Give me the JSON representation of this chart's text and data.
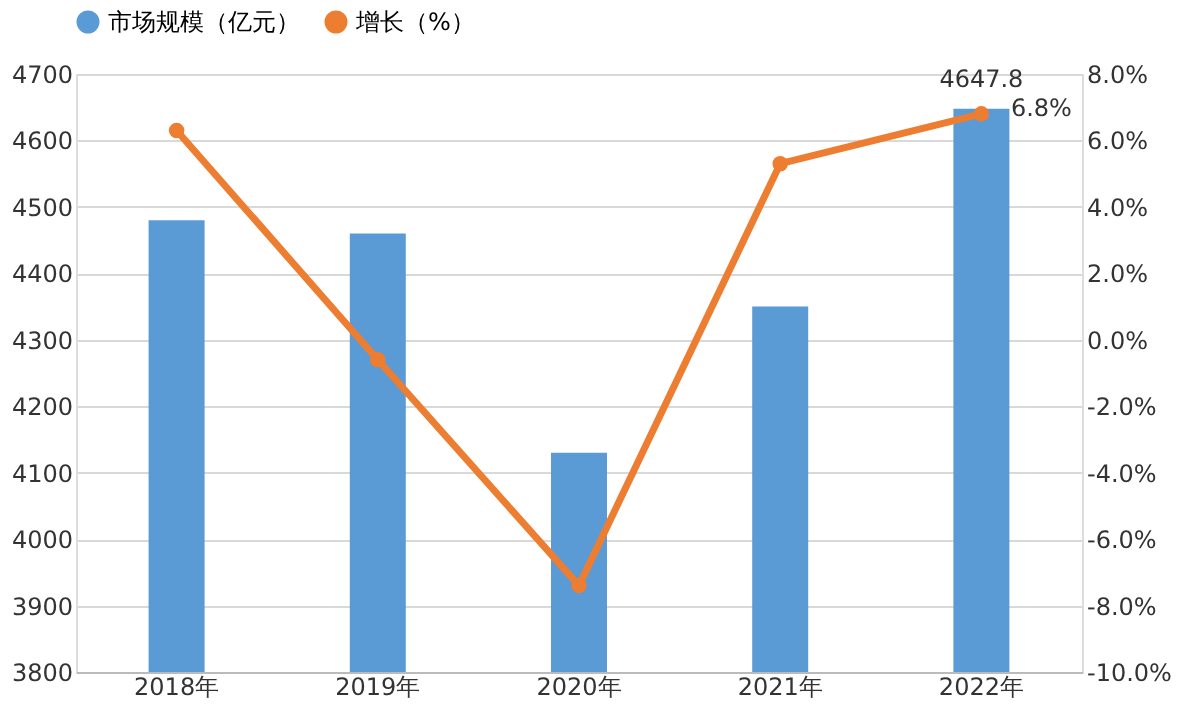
{
  "chart_data": {
    "type": "bar",
    "categories": [
      "2018年",
      "2019年",
      "2020年",
      "2021年",
      "2022年"
    ],
    "series": [
      {
        "name": "市场规模（亿元）",
        "color": "#5b9bd5",
        "values": [
          4480,
          4460,
          4130,
          4350,
          4647.8
        ],
        "value_labels": [
          null,
          null,
          null,
          null,
          "4647.8"
        ]
      },
      {
        "name": "增长（%）",
        "type": "line",
        "axis": "y2",
        "color": "#ed7d31",
        "marker": "circle",
        "values": [
          6.3,
          -0.6,
          -7.4,
          5.3,
          6.8
        ],
        "value_labels": [
          null,
          null,
          null,
          null,
          "6.8%"
        ]
      }
    ],
    "ylim": [
      3800,
      4700
    ],
    "yticks": [
      3800,
      3900,
      4000,
      4100,
      4200,
      4300,
      4400,
      4500,
      4600,
      4700
    ],
    "y2lim": [
      -10,
      8
    ],
    "y2ticks": [
      {
        "value": -10,
        "label": "-10.0%"
      },
      {
        "value": -8,
        "label": "-8.0%"
      },
      {
        "value": -6,
        "label": "-6.0%"
      },
      {
        "value": -4,
        "label": "-4.0%"
      },
      {
        "value": -2,
        "label": "-2.0%"
      },
      {
        "value": 0,
        "label": "0.0%"
      },
      {
        "value": 2,
        "label": "2.0%"
      },
      {
        "value": 4,
        "label": "4.0%"
      },
      {
        "value": 6,
        "label": "6.0%"
      },
      {
        "value": 8,
        "label": "8.0%"
      }
    ],
    "grid": "y",
    "legend": "top"
  }
}
